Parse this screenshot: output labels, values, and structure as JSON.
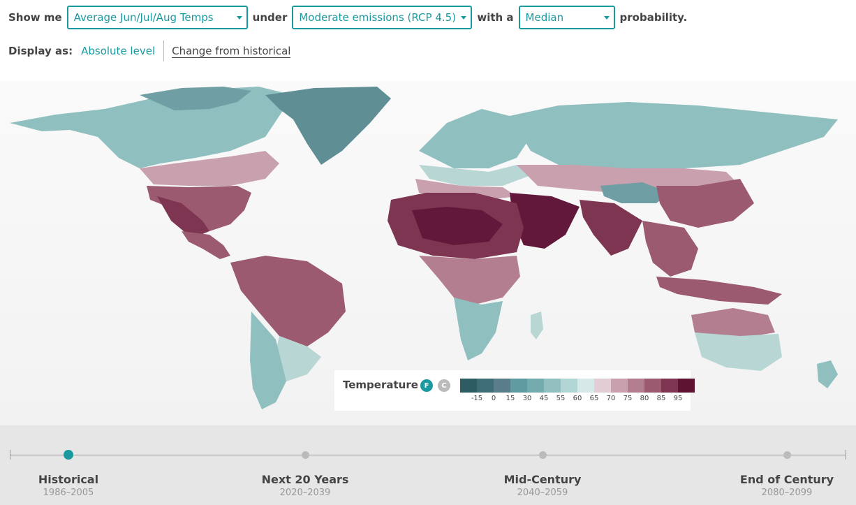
{
  "controls": {
    "show_me": "Show me",
    "variable": "Average Jun/Jul/Aug Temps",
    "under": "under",
    "scenario": "Moderate emissions (RCP 4.5)",
    "with_a": "with a",
    "probability_value": "Median",
    "probability": "probability."
  },
  "display": {
    "label": "Display as:",
    "absolute": "Absolute level",
    "change": "Change from historical"
  },
  "legend": {
    "title": "Temperature",
    "unit_f": "F",
    "unit_c": "C",
    "colors": [
      "#2d5d62",
      "#3f6e76",
      "#5a7d8a",
      "#5f9ba0",
      "#74abae",
      "#92c0c0",
      "#b2d6d4",
      "#d7e8e8",
      "#e3cdd5",
      "#c9a0ae",
      "#b37e90",
      "#9b5a70",
      "#7e3551",
      "#5e1430"
    ],
    "ticks": [
      "-15",
      "0",
      "15",
      "30",
      "45",
      "55",
      "60",
      "65",
      "70",
      "75",
      "80",
      "85",
      "95"
    ]
  },
  "timeline": {
    "periods": [
      {
        "label": "Historical",
        "years": "1986–2005",
        "active": true
      },
      {
        "label": "Next 20 Years",
        "years": "2020–2039",
        "active": false
      },
      {
        "label": "Mid-Century",
        "years": "2040–2059",
        "active": false
      },
      {
        "label": "End of Century",
        "years": "2080–2099",
        "active": false
      }
    ]
  },
  "map_colors": {
    "cold": "#5f8f95",
    "cool": "#8fbfbf",
    "mild": "#b7d6d4",
    "warm": "#c9a0ae",
    "hot": "#9b5a70",
    "hotter": "#7e3551",
    "hottest": "#62183a"
  }
}
